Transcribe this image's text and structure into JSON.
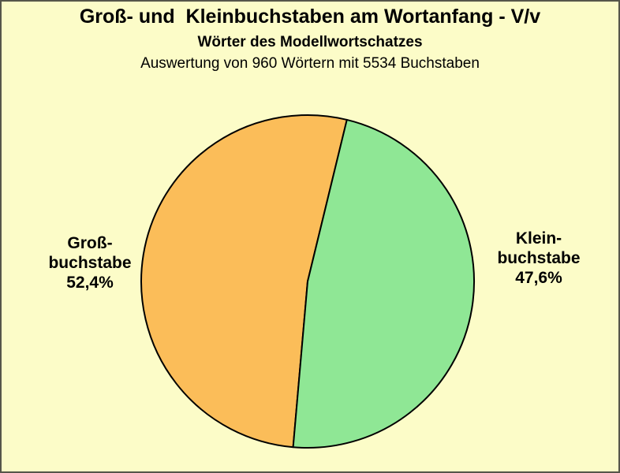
{
  "colors": {
    "background": "#FCFCC8",
    "outline": "#000000",
    "frame_border": "#56564a"
  },
  "chart_data": {
    "type": "pie",
    "title": "Groß- und  Kleinbuchstaben am Wortanfang - V/v",
    "subtitle": "Wörter des Modellwortschatzes",
    "note": "Auswertung von 960 Wörtern mit 5534 Buchstaben",
    "legend_position": "none",
    "start_angle_deg": 185,
    "slices": [
      {
        "id": "grossbuchstabe",
        "lines": [
          "Groß-",
          "buchstabe"
        ],
        "pct_label": "52,4%",
        "value": 52.4,
        "color": "#FBBD59"
      },
      {
        "id": "kleinbuchstabe",
        "lines": [
          "Klein-",
          "buchstabe"
        ],
        "pct_label": "47,6%",
        "value": 47.6,
        "color": "#8FE795"
      }
    ]
  }
}
